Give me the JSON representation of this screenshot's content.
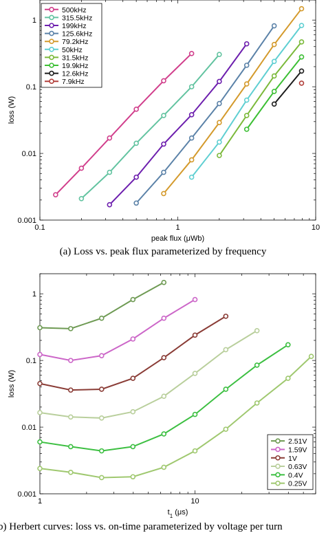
{
  "chart_data": [
    {
      "type": "line",
      "xscale": "log",
      "yscale": "log",
      "xlabel": "peak flux (μWb)",
      "ylabel": "loss (W)",
      "xlim": [
        0.1,
        10
      ],
      "ylim": [
        0.001,
        2
      ],
      "xticks": [
        "0.1",
        "1",
        "10"
      ],
      "yticks": [
        "0.001",
        "0.01",
        "0.1",
        "1"
      ],
      "legend_position": "top-left",
      "series": [
        {
          "name": "500kHz",
          "color": "#d13f8c",
          "x": [
            0.13,
            0.2,
            0.32,
            0.5,
            0.79,
            1.26
          ],
          "y": [
            0.0024,
            0.006,
            0.017,
            0.046,
            0.123,
            0.315
          ]
        },
        {
          "name": "315.5kHz",
          "color": "#62c3a0",
          "x": [
            0.2,
            0.32,
            0.5,
            0.79,
            1.26,
            2.0
          ],
          "y": [
            0.0021,
            0.0052,
            0.0142,
            0.037,
            0.1,
            0.305
          ]
        },
        {
          "name": "199kHz",
          "color": "#6d1fae",
          "x": [
            0.32,
            0.5,
            0.79,
            1.26,
            2.0,
            3.16
          ],
          "y": [
            0.0017,
            0.0044,
            0.0138,
            0.038,
            0.12,
            0.44
          ]
        },
        {
          "name": "125.6kHz",
          "color": "#5b82a8",
          "x": [
            0.5,
            0.79,
            1.26,
            2.0,
            3.16,
            5.0
          ],
          "y": [
            0.0018,
            0.0052,
            0.017,
            0.056,
            0.21,
            0.82
          ]
        },
        {
          "name": "79.2kHz",
          "color": "#d49a2c",
          "x": [
            0.79,
            1.26,
            2.0,
            3.16,
            5.0,
            7.9
          ],
          "y": [
            0.0025,
            0.008,
            0.029,
            0.11,
            0.43,
            1.48
          ]
        },
        {
          "name": "50kHz",
          "color": "#5fcfd2",
          "x": [
            1.26,
            2.0,
            3.16,
            5.0,
            7.9
          ],
          "y": [
            0.0044,
            0.0148,
            0.063,
            0.24,
            0.83
          ]
        },
        {
          "name": "31.5kHz",
          "color": "#7bb93a",
          "x": [
            2.0,
            3.16,
            5.0,
            7.9
          ],
          "y": [
            0.0093,
            0.037,
            0.145,
            0.47
          ]
        },
        {
          "name": "19.9kHz",
          "color": "#3cbf34",
          "x": [
            3.16,
            5.0,
            7.9
          ],
          "y": [
            0.023,
            0.085,
            0.28
          ]
        },
        {
          "name": "12.6kHz",
          "color": "#1c1c1c",
          "x": [
            5.0,
            7.9
          ],
          "y": [
            0.055,
            0.172
          ]
        },
        {
          "name": "7.9kHz",
          "color": "#b23f3a",
          "x": [
            7.9
          ],
          "y": [
            0.113
          ]
        }
      ]
    },
    {
      "type": "line",
      "xscale": "log",
      "yscale": "log",
      "xlabel": "t",
      "xlabel_subscript": "1",
      "xlabel_unit": " (μs)",
      "ylabel": "loss (W)",
      "xlim": [
        1,
        60
      ],
      "ylim": [
        0.001,
        2
      ],
      "xticks": [
        "1",
        "10"
      ],
      "yticks": [
        "0.001",
        "0.01",
        "0.1",
        "1"
      ],
      "legend_position": "bottom-right",
      "series": [
        {
          "name": "2.51V",
          "color": "#6e9a53",
          "x": [
            1.0,
            1.58,
            2.5,
            3.98,
            6.3
          ],
          "y": [
            0.31,
            0.3,
            0.43,
            0.82,
            1.48
          ]
        },
        {
          "name": "1.59V",
          "color": "#cc66c8",
          "x": [
            1.0,
            1.58,
            2.5,
            3.98,
            6.3,
            10.0
          ],
          "y": [
            0.123,
            0.1,
            0.118,
            0.21,
            0.43,
            0.82
          ]
        },
        {
          "name": "1V",
          "color": "#8a3c36",
          "x": [
            1.0,
            1.58,
            2.5,
            3.98,
            6.3,
            10.0,
            15.8
          ],
          "y": [
            0.045,
            0.036,
            0.037,
            0.054,
            0.11,
            0.24,
            0.46
          ]
        },
        {
          "name": "0.63V",
          "color": "#b9cf9c",
          "x": [
            1.0,
            1.58,
            2.5,
            3.98,
            6.3,
            10.0,
            15.8,
            25.1
          ],
          "y": [
            0.0165,
            0.0142,
            0.0137,
            0.017,
            0.029,
            0.064,
            0.145,
            0.28
          ]
        },
        {
          "name": "0.4V",
          "color": "#3cbf41",
          "x": [
            1.0,
            1.58,
            2.5,
            3.98,
            6.3,
            10.0,
            15.8,
            25.1,
            39.8
          ],
          "y": [
            0.006,
            0.0051,
            0.0044,
            0.0051,
            0.0079,
            0.0155,
            0.037,
            0.085,
            0.172
          ]
        },
        {
          "name": "0.25V",
          "color": "#9fc86f",
          "x": [
            1.0,
            1.58,
            2.5,
            3.98,
            6.3,
            10.0,
            15.8,
            25.1,
            39.8,
            56.2
          ],
          "y": [
            0.0024,
            0.0021,
            0.00175,
            0.0018,
            0.0025,
            0.0044,
            0.0093,
            0.023,
            0.054,
            0.115
          ]
        }
      ]
    }
  ],
  "captions": {
    "a": "(a) Loss vs. peak flux parameterized by frequency",
    "b": "(b) Herbert curves: loss vs. on-time parameterized by voltage per turn"
  }
}
